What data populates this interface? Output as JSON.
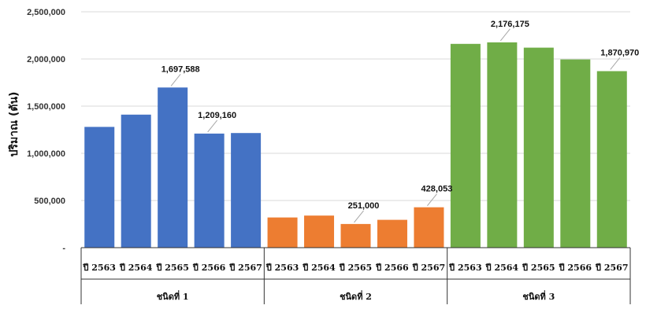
{
  "chart_data": {
    "type": "bar",
    "title": "",
    "xlabel": "",
    "ylabel": "ปริมาณ (ตัน)",
    "ylim": [
      0,
      2500000
    ],
    "yticks": [
      0,
      500000,
      1000000,
      1500000,
      2000000,
      2500000
    ],
    "ytick_labels": [
      "-",
      "500,000",
      "1,000,000",
      "1,500,000",
      "2,000,000",
      "2,500,000"
    ],
    "grid": true,
    "legend": "none",
    "groups": [
      {
        "label": "ชนิดที่ 1",
        "color": "#4472C4",
        "categories": [
          "ปี 2563",
          "ปี 2564",
          "ปี 2565",
          "ปี 2566",
          "ปี 2567"
        ],
        "values": [
          1280000,
          1410000,
          1697588,
          1209160,
          1215000
        ],
        "data_labels": [
          "",
          "",
          "1,697,588",
          "1,209,160",
          ""
        ]
      },
      {
        "label": "ชนิดที่ 2",
        "color": "#ED7D31",
        "categories": [
          "ปี 2563",
          "ปี 2564",
          "ปี 2565",
          "ปี 2566",
          "ปี 2567"
        ],
        "values": [
          320000,
          340000,
          251000,
          295000,
          428053
        ],
        "data_labels": [
          "",
          "",
          "251,000",
          "",
          "428,053"
        ]
      },
      {
        "label": "ชนิดที่ 3",
        "color": "#70AD47",
        "categories": [
          "ปี 2563",
          "ปี 2564",
          "ปี 2565",
          "ปี 2566",
          "ปี 2567"
        ],
        "values": [
          2160000,
          2176175,
          2120000,
          1995000,
          1870970
        ],
        "data_labels": [
          "",
          "2,176,175",
          "",
          "",
          "1,870,970"
        ]
      }
    ]
  }
}
